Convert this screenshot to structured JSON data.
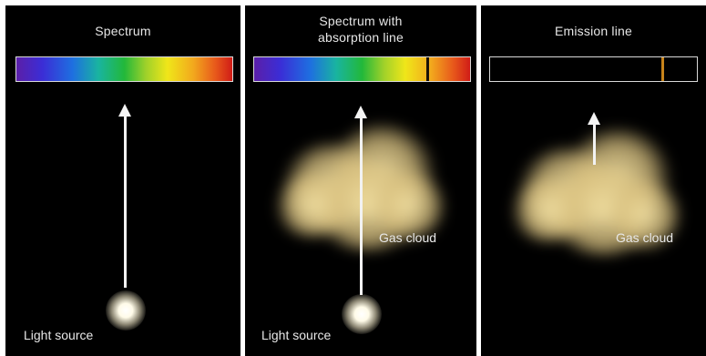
{
  "panels": [
    {
      "title": "Spectrum",
      "source_label": "Light source",
      "bar_type": "continuous"
    },
    {
      "title_line1": "Spectrum with",
      "title_line2": "absorption line",
      "cloud_label": "Gas cloud",
      "source_label": "Light source",
      "bar_type": "absorption"
    },
    {
      "title": "Emission line",
      "cloud_label": "Gas cloud",
      "bar_type": "emission"
    }
  ],
  "colors": {
    "background": "#000000",
    "divider": "#ffffff",
    "text": "#e8e8e8",
    "arrow": "#f2f2f2",
    "emission_line": "#c7831a",
    "cloud": "#e6cf90"
  }
}
